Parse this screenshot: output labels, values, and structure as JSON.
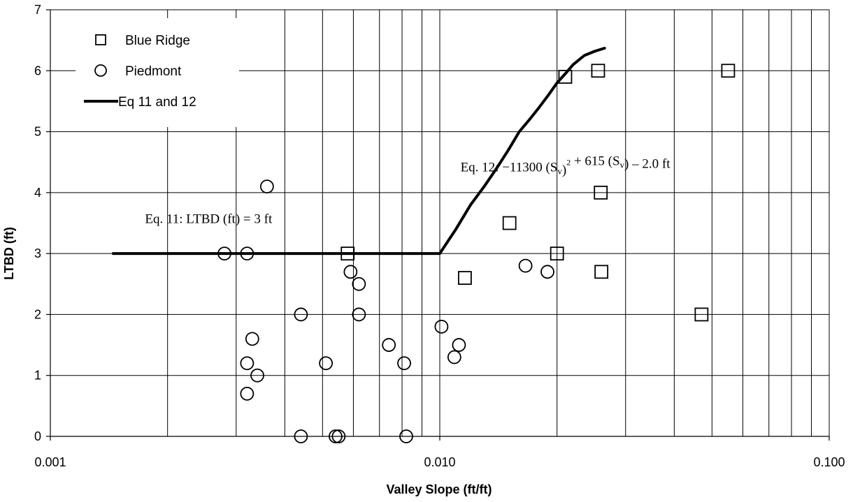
{
  "chart_data": {
    "type": "scatter",
    "title": "",
    "xlabel": "Valley Slope (ft/ft)",
    "ylabel": "LTBD (ft)",
    "xscale": "log",
    "xlim": [
      0.001,
      0.1
    ],
    "ylim": [
      0,
      7
    ],
    "x_ticks": [
      0.001,
      0.01,
      0.1
    ],
    "x_tick_labels": [
      "0.001",
      "0.010",
      "0.100"
    ],
    "y_ticks": [
      0,
      1,
      2,
      3,
      4,
      5,
      6,
      7
    ],
    "y_tick_labels": [
      "0",
      "1",
      "2",
      "3",
      "4",
      "5",
      "6",
      "7"
    ],
    "grid": true,
    "legend_position": "top-left",
    "series": [
      {
        "name": "Blue Ridge",
        "marker": "square",
        "points": [
          {
            "x": 0.0058,
            "y": 3.0
          },
          {
            "x": 0.0116,
            "y": 2.6
          },
          {
            "x": 0.0151,
            "y": 3.5
          },
          {
            "x": 0.02,
            "y": 3.0
          },
          {
            "x": 0.021,
            "y": 5.9
          },
          {
            "x": 0.0255,
            "y": 6.0
          },
          {
            "x": 0.0259,
            "y": 4.0
          },
          {
            "x": 0.026,
            "y": 2.7
          },
          {
            "x": 0.047,
            "y": 2.0
          },
          {
            "x": 0.055,
            "y": 6.0
          }
        ]
      },
      {
        "name": "Piedmont",
        "marker": "circle",
        "points": [
          {
            "x": 0.0028,
            "y": 3.0
          },
          {
            "x": 0.0032,
            "y": 3.0
          },
          {
            "x": 0.0036,
            "y": 4.1
          },
          {
            "x": 0.0033,
            "y": 1.6
          },
          {
            "x": 0.0032,
            "y": 1.2
          },
          {
            "x": 0.0034,
            "y": 1.0
          },
          {
            "x": 0.0032,
            "y": 0.7
          },
          {
            "x": 0.0044,
            "y": 2.0
          },
          {
            "x": 0.0044,
            "y": 0.0
          },
          {
            "x": 0.0051,
            "y": 1.2
          },
          {
            "x": 0.0054,
            "y": 0.0
          },
          {
            "x": 0.0055,
            "y": 0.0
          },
          {
            "x": 0.0059,
            "y": 2.7
          },
          {
            "x": 0.0062,
            "y": 2.5
          },
          {
            "x": 0.0062,
            "y": 2.0
          },
          {
            "x": 0.0074,
            "y": 1.5
          },
          {
            "x": 0.0081,
            "y": 1.2
          },
          {
            "x": 0.0082,
            "y": 0.0
          },
          {
            "x": 0.0101,
            "y": 1.8
          },
          {
            "x": 0.0109,
            "y": 1.3
          },
          {
            "x": 0.0112,
            "y": 1.5
          },
          {
            "x": 0.0166,
            "y": 2.8
          },
          {
            "x": 0.0189,
            "y": 2.7
          }
        ]
      },
      {
        "name": "Eq 11 and 12",
        "marker": "line",
        "points": [
          {
            "x": 0.00145,
            "y": 3.0
          },
          {
            "x": 0.01,
            "y": 3.0
          },
          {
            "x": 0.011,
            "y": 3.4
          },
          {
            "x": 0.012,
            "y": 3.8
          },
          {
            "x": 0.013,
            "y": 4.1
          },
          {
            "x": 0.014,
            "y": 4.4
          },
          {
            "x": 0.015,
            "y": 4.7
          },
          {
            "x": 0.016,
            "y": 5.0
          },
          {
            "x": 0.017,
            "y": 5.2
          },
          {
            "x": 0.018,
            "y": 5.4
          },
          {
            "x": 0.019,
            "y": 5.6
          },
          {
            "x": 0.02,
            "y": 5.8
          },
          {
            "x": 0.021,
            "y": 5.95
          },
          {
            "x": 0.022,
            "y": 6.1
          },
          {
            "x": 0.0235,
            "y": 6.25
          },
          {
            "x": 0.025,
            "y": 6.32
          },
          {
            "x": 0.0265,
            "y": 6.37
          }
        ]
      }
    ],
    "annotations": [
      {
        "id": "eq11",
        "text": "Eq. 11: LTBD (ft) = 3 ft",
        "x": 0.00175,
        "y": 3.5
      },
      {
        "id": "eq12",
        "x": 0.0113,
        "y": 4.35,
        "parts": [
          {
            "t": "Eq. 12: −11300 (S",
            "kind": "normal"
          },
          {
            "t": "v",
            "kind": "sub"
          },
          {
            "t": ")",
            "kind": "normal"
          },
          {
            "t": "2",
            "kind": "sup"
          },
          {
            "t": " + 615 (S",
            "kind": "normal"
          },
          {
            "t": "v",
            "kind": "sub"
          },
          {
            "t": ") – 2.0 ft",
            "kind": "normal"
          }
        ]
      }
    ]
  }
}
